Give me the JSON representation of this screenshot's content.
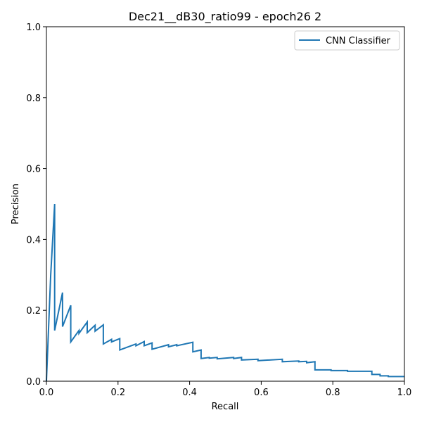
{
  "chart_data": {
    "type": "line",
    "title": "Dec21__dB30_ratio99 - epoch26 2",
    "xlabel": "Recall",
    "ylabel": "Precision",
    "xlim": [
      0.0,
      1.0
    ],
    "ylim": [
      0.0,
      1.0
    ],
    "xticks": [
      "0.0",
      "0.2",
      "0.4",
      "0.6",
      "0.8",
      "1.0"
    ],
    "yticks": [
      "0.0",
      "0.2",
      "0.4",
      "0.6",
      "0.8",
      "1.0"
    ],
    "grid": false,
    "legend_position": "top-right",
    "series": [
      {
        "name": "CNN Classifier",
        "color": "#1f77b4",
        "x": [
          0.0,
          0.012,
          0.023,
          0.023,
          0.045,
          0.045,
          0.068,
          0.068,
          0.091,
          0.091,
          0.114,
          0.114,
          0.136,
          0.136,
          0.159,
          0.159,
          0.182,
          0.182,
          0.205,
          0.205,
          0.25,
          0.25,
          0.273,
          0.273,
          0.295,
          0.295,
          0.341,
          0.341,
          0.364,
          0.364,
          0.409,
          0.409,
          0.432,
          0.432,
          0.455,
          0.455,
          0.477,
          0.477,
          0.523,
          0.523,
          0.545,
          0.545,
          0.591,
          0.591,
          0.659,
          0.659,
          0.705,
          0.705,
          0.727,
          0.727,
          0.75,
          0.75,
          0.795,
          0.795,
          0.841,
          0.841,
          0.909,
          0.909,
          0.932,
          0.932,
          0.955,
          0.955,
          1.0
        ],
        "y": [
          0.0,
          0.3,
          0.5,
          0.143,
          0.25,
          0.154,
          0.214,
          0.111,
          0.143,
          0.135,
          0.167,
          0.137,
          0.158,
          0.141,
          0.159,
          0.105,
          0.118,
          0.111,
          0.12,
          0.088,
          0.105,
          0.1,
          0.112,
          0.1,
          0.108,
          0.09,
          0.103,
          0.097,
          0.103,
          0.1,
          0.11,
          0.083,
          0.088,
          0.064,
          0.067,
          0.065,
          0.067,
          0.063,
          0.067,
          0.064,
          0.067,
          0.06,
          0.062,
          0.058,
          0.062,
          0.055,
          0.057,
          0.055,
          0.056,
          0.052,
          0.055,
          0.032,
          0.032,
          0.03,
          0.03,
          0.028,
          0.028,
          0.019,
          0.019,
          0.015,
          0.015,
          0.013,
          0.013
        ]
      }
    ]
  }
}
